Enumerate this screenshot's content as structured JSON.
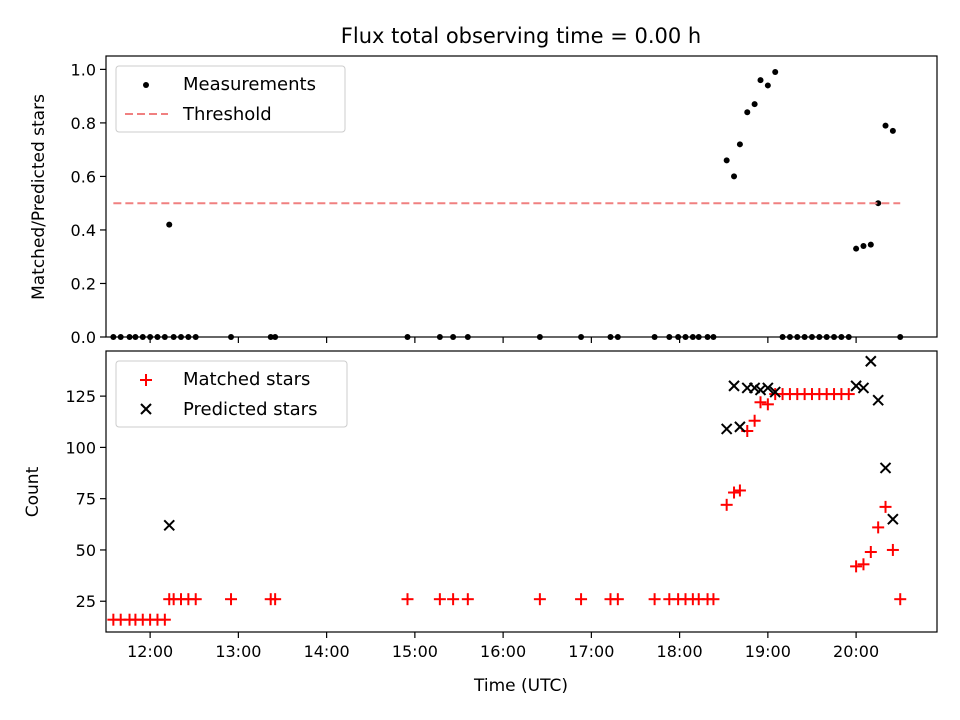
{
  "chart_data": [
    {
      "type": "scatter",
      "panel": "top",
      "title": "Flux total observing time = 0.00 h",
      "xlabel": "",
      "ylabel": "Matched/Predicted stars",
      "xlim": [
        "11:30",
        "20:55"
      ],
      "ylim": [
        0,
        1.05
      ],
      "yticks": [
        0.0,
        0.2,
        0.4,
        0.6,
        0.8,
        1.0
      ],
      "ytick_labels": [
        "0.0",
        "0.2",
        "0.4",
        "0.6",
        "0.8",
        "1.0"
      ],
      "xtick_labels_visible": false,
      "legend_placement": "upper-left",
      "grid": false,
      "series": [
        {
          "name": "Measurements",
          "kind": "points",
          "color": "#000000",
          "marker": "dot",
          "x": [
            "11:35",
            "11:40",
            "11:46",
            "11:50",
            "11:55",
            "12:00",
            "12:05",
            "12:10",
            "12:13",
            "12:16",
            "12:21",
            "12:26",
            "12:31",
            "12:55",
            "13:22",
            "13:25",
            "14:55",
            "15:17",
            "15:26",
            "15:36",
            "16:25",
            "16:53",
            "17:13",
            "17:18",
            "17:43",
            "17:53",
            "17:59",
            "18:04",
            "18:09",
            "18:13",
            "18:19",
            "18:23",
            "18:32",
            "18:37",
            "18:41",
            "18:46",
            "18:51",
            "18:55",
            "19:00",
            "19:05",
            "19:10",
            "19:15",
            "19:20",
            "19:25",
            "19:30",
            "19:35",
            "19:40",
            "19:45",
            "19:50",
            "19:55",
            "20:00",
            "20:05",
            "20:10",
            "20:15",
            "20:20",
            "20:25",
            "20:30"
          ],
          "y": [
            0,
            0,
            0,
            0,
            0,
            0,
            0,
            0,
            0.42,
            0,
            0,
            0,
            0,
            0,
            0,
            0,
            0,
            0,
            0,
            0,
            0,
            0,
            0,
            0,
            0,
            0,
            0,
            0,
            0,
            0,
            0,
            0,
            0.66,
            0.6,
            0.72,
            0.84,
            0.87,
            0.96,
            0.94,
            0.99,
            0,
            0,
            0,
            0,
            0,
            0,
            0,
            0,
            0,
            0,
            0.33,
            0.34,
            0.345,
            0.5,
            0.79,
            0.77,
            0
          ]
        },
        {
          "name": "Threshold",
          "kind": "line",
          "style": "dashed",
          "color": "#f08080",
          "x": [
            "11:35",
            "20:30"
          ],
          "y": [
            0.5,
            0.5
          ]
        }
      ]
    },
    {
      "type": "scatter",
      "panel": "bottom",
      "title": "",
      "xlabel": "Time (UTC)",
      "ylabel": "Count",
      "xlim": [
        "11:30",
        "20:55"
      ],
      "ylim": [
        10,
        147
      ],
      "yticks": [
        25,
        50,
        75,
        100,
        125
      ],
      "ytick_labels": [
        "25",
        "50",
        "75",
        "100",
        "125"
      ],
      "xticks": [
        "12:00",
        "13:00",
        "14:00",
        "15:00",
        "16:00",
        "17:00",
        "18:00",
        "19:00",
        "20:00"
      ],
      "xtick_labels": [
        "12:00",
        "13:00",
        "14:00",
        "15:00",
        "16:00",
        "17:00",
        "18:00",
        "19:00",
        "20:00"
      ],
      "legend_placement": "upper-left",
      "grid": false,
      "series": [
        {
          "name": "Matched stars",
          "kind": "points",
          "color": "#ff0000",
          "marker": "plus",
          "x": [
            "11:35",
            "11:40",
            "11:46",
            "11:50",
            "11:55",
            "12:00",
            "12:05",
            "12:10",
            "12:13",
            "12:16",
            "12:21",
            "12:26",
            "12:31",
            "12:55",
            "13:22",
            "13:25",
            "14:55",
            "15:17",
            "15:26",
            "15:36",
            "16:25",
            "16:53",
            "17:13",
            "17:18",
            "17:43",
            "17:53",
            "17:59",
            "18:04",
            "18:09",
            "18:13",
            "18:19",
            "18:23",
            "18:32",
            "18:37",
            "18:41",
            "18:46",
            "18:51",
            "18:55",
            "19:00",
            "19:05",
            "19:10",
            "19:15",
            "19:20",
            "19:25",
            "19:30",
            "19:35",
            "19:40",
            "19:45",
            "19:50",
            "19:55",
            "20:00",
            "20:05",
            "20:10",
            "20:15",
            "20:20",
            "20:25",
            "20:30"
          ],
          "y": [
            16,
            16,
            16,
            16,
            16,
            16,
            16,
            16,
            26,
            26,
            26,
            26,
            26,
            26,
            26,
            26,
            26,
            26,
            26,
            26,
            26,
            26,
            26,
            26,
            26,
            26,
            26,
            26,
            26,
            26,
            26,
            26,
            72,
            78,
            79,
            108,
            113,
            122,
            121,
            126,
            126,
            126,
            126,
            126,
            126,
            126,
            126,
            126,
            126,
            126,
            42,
            43,
            49,
            61,
            71,
            50,
            26
          ]
        },
        {
          "name": "Predicted stars",
          "kind": "points",
          "color": "#000000",
          "marker": "x",
          "x": [
            "12:13",
            "18:32",
            "18:37",
            "18:41",
            "18:46",
            "18:51",
            "18:55",
            "19:00",
            "19:05",
            "20:00",
            "20:05",
            "20:10",
            "20:15",
            "20:20",
            "20:25"
          ],
          "y": [
            62,
            109,
            130,
            110,
            129,
            129,
            128,
            129,
            127,
            130,
            129,
            142,
            123,
            90,
            65
          ]
        }
      ]
    }
  ]
}
